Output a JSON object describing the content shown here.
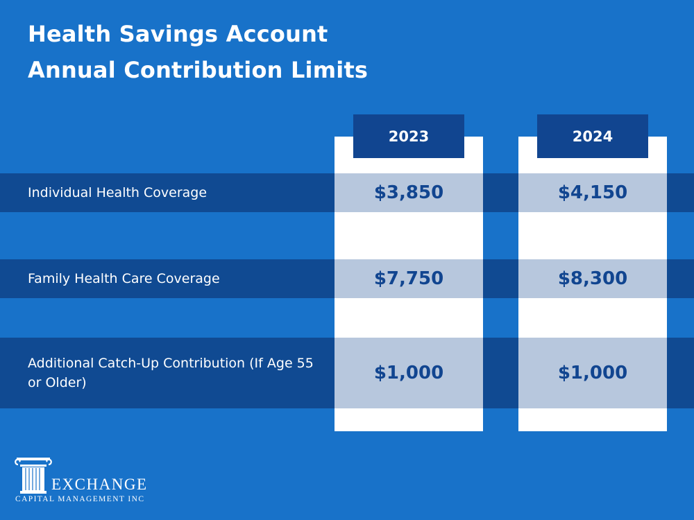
{
  "title": {
    "line1": "Health Savings Account",
    "line2": "Annual Contribution Limits"
  },
  "columns": [
    "2023",
    "2024"
  ],
  "rows": [
    {
      "label": "Individual Health Coverage",
      "values": [
        "$3,850",
        "$4,150"
      ]
    },
    {
      "label": "Family Health Care Coverage",
      "values": [
        "$7,750",
        "$8,300"
      ]
    },
    {
      "label": "Additional Catch-Up Contribution (If Age 55 or Older)",
      "values": [
        "$1,000",
        "$1,000"
      ]
    }
  ],
  "logo": {
    "name": "EXCHANGE",
    "subtitle": "CAPITAL MANAGEMENT INC",
    "icon": "column-icon"
  },
  "colors": {
    "background": "#1872c9",
    "band": "#104a92",
    "header": "#114590",
    "cell": "#b7c7dd",
    "column": "#ffffff",
    "value_text": "#114590"
  }
}
